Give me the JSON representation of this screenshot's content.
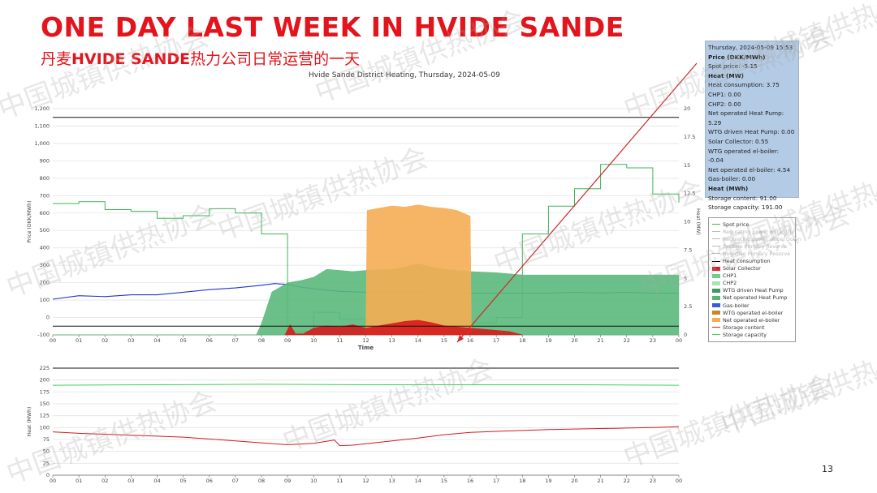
{
  "slide": {
    "title": "ONE DAY LAST WEEK IN HVIDE SANDE",
    "subtitle_prefix": "丹麦",
    "subtitle_bold": "HVIDE SANDE",
    "subtitle_suffix": "热力公司日常运营的一天",
    "page_number": "13",
    "watermark": "中国城镇供热协会"
  },
  "tooltip": {
    "lines": [
      {
        "text": "Thursday, 2024-05-09 15:53",
        "bold": false
      },
      {
        "text": "Price (DKK/MWh)",
        "bold": true
      },
      {
        "text": "Spot price: -5.15",
        "bold": false
      },
      {
        "text": "Heat (MW)",
        "bold": true
      },
      {
        "text": "Heat consumption: 3.75",
        "bold": false
      },
      {
        "text": "CHP1: 0.00",
        "bold": false
      },
      {
        "text": "CHP2: 0.00",
        "bold": false
      },
      {
        "text": "Net operated Heat Pump: 5.29",
        "bold": false
      },
      {
        "text": "WTG driven Heat Pump: 0.00",
        "bold": false
      },
      {
        "text": "Solar Collector: 0.55",
        "bold": false
      },
      {
        "text": "WTG operated el-boiler: -0.04",
        "bold": false
      },
      {
        "text": "Net operated el-boiler: 4.54",
        "bold": false
      },
      {
        "text": "Gas-boiler: 0.00",
        "bold": false
      },
      {
        "text": "Heat (MWh)",
        "bold": true
      },
      {
        "text": "Storage content: 91.00",
        "bold": false
      },
      {
        "text": "Storage capacity: 191.00",
        "bold": false
      }
    ]
  },
  "legend": {
    "items": [
      {
        "label": "Spot price",
        "kind": "line",
        "color": "#3cb65a",
        "hidden": false
      },
      {
        "label": "Regulating power price, Up",
        "kind": "line",
        "color": "#bbbbbb",
        "hidden": true
      },
      {
        "label": "Regulating power price, Down",
        "kind": "line",
        "color": "#bbbbbb",
        "hidden": true
      },
      {
        "label": "Positive Primary Reserve",
        "kind": "line",
        "color": "#bbbbbb",
        "hidden": true
      },
      {
        "label": "Negative Primary Reserve",
        "kind": "line",
        "color": "#bbbbbb",
        "hidden": true
      },
      {
        "label": "Heat consumption",
        "kind": "line",
        "color": "#000000",
        "hidden": false
      },
      {
        "label": "Solar Collector",
        "kind": "box",
        "color": "#d7191c",
        "hidden": false
      },
      {
        "label": "CHP1",
        "kind": "box",
        "color": "#6fcf8a",
        "hidden": false
      },
      {
        "label": "CHP2",
        "kind": "box",
        "color": "#a8e2b5",
        "hidden": false
      },
      {
        "label": "WTG driven Heat Pump",
        "kind": "box",
        "color": "#3c9a5b",
        "hidden": false
      },
      {
        "label": "Net operated Heat Pump",
        "kind": "box",
        "color": "#56b477",
        "hidden": false
      },
      {
        "label": "Gas-boiler",
        "kind": "box",
        "color": "#3b5bd6",
        "hidden": false
      },
      {
        "label": "WTG operated el-boiler",
        "kind": "box",
        "color": "#c8872a",
        "hidden": false
      },
      {
        "label": "Net operated el-boiler",
        "kind": "box",
        "color": "#f5ad53",
        "hidden": false
      },
      {
        "label": "Storage content",
        "kind": "line",
        "color": "#d7191c",
        "hidden": false
      },
      {
        "label": "Storage capacity",
        "kind": "line",
        "color": "#3cd15a",
        "hidden": false
      }
    ]
  },
  "chart_data": [
    {
      "type": "area",
      "title": "Hvide Sande District Heating, Thursday, 2024-05-09",
      "xlabel": "Time",
      "ylabel": "Price (DKK/MWh)",
      "ylabel_right": "Heat (MW)",
      "x_ticks": [
        "00",
        "01",
        "02",
        "03",
        "04",
        "05",
        "06",
        "07",
        "08",
        "09",
        "10",
        "11",
        "12",
        "13",
        "14",
        "15",
        "16",
        "17",
        "18",
        "19",
        "20",
        "21",
        "22",
        "23",
        "00"
      ],
      "ylim": [
        -100,
        1200
      ],
      "y_ticks": [
        "-100",
        "0",
        "100",
        "200",
        "300",
        "400",
        "500",
        "600",
        "700",
        "800",
        "900",
        "1,000",
        "1,100",
        "1,200"
      ],
      "y2lim": [
        0,
        20
      ],
      "y2_ticks": [
        "0",
        "2.5",
        "5",
        "7.5",
        "10",
        "12.5",
        "15",
        "17.5",
        "20"
      ],
      "reference_lines": [
        1150,
        -50
      ],
      "series": [
        {
          "name": "Spot price",
          "color": "#3cb65a",
          "step": true,
          "x": [
            0,
            1,
            2,
            3,
            4,
            5,
            6,
            7,
            8,
            9,
            10,
            11,
            12,
            13,
            14,
            15,
            16,
            17,
            18,
            19,
            20,
            21,
            22,
            23,
            24
          ],
          "values": [
            655,
            665,
            620,
            610,
            570,
            585,
            625,
            600,
            480,
            -80,
            30,
            -10,
            -20,
            -40,
            -60,
            -70,
            -30,
            0,
            480,
            640,
            740,
            880,
            860,
            710,
            660
          ]
        },
        {
          "name": "Gas-boiler",
          "color": "#2233cc",
          "x": [
            0,
            1,
            2,
            3,
            4,
            5,
            6,
            7,
            8,
            8.5,
            9,
            9.5,
            10,
            11,
            12,
            13,
            14,
            15,
            16,
            17,
            18,
            19,
            20,
            21,
            22,
            23,
            24
          ],
          "values": [
            105,
            125,
            120,
            130,
            130,
            145,
            160,
            170,
            185,
            195,
            190,
            175,
            165,
            150,
            145,
            150,
            145,
            135,
            140,
            140,
            140,
            140,
            145,
            140,
            145,
            140,
            140
          ]
        },
        {
          "name": "Net operated Heat Pump",
          "color": "#5ab97b",
          "x": [
            0,
            7.8,
            8,
            8.4,
            9,
            9.5,
            10,
            10.5,
            11,
            11.5,
            12,
            13,
            13.5,
            14,
            14.5,
            15,
            16,
            17,
            17.5,
            18,
            24
          ],
          "values": [
            0,
            0,
            1,
            3.8,
            4.6,
            4.8,
            5.1,
            5.8,
            5.7,
            5.6,
            5.7,
            5.8,
            6.0,
            6.3,
            6.0,
            5.8,
            5.6,
            5.5,
            5.4,
            5.3,
            5.3
          ]
        },
        {
          "name": "Net operated el-boiler",
          "color": "#f5ad53",
          "x": [
            12,
            12.05,
            12.5,
            13,
            13.5,
            14,
            14.5,
            15,
            15.5,
            16,
            16.05
          ],
          "values": [
            0,
            11.0,
            11.2,
            11.4,
            11.3,
            11.5,
            11.3,
            11.2,
            11.0,
            10.5,
            0
          ]
        },
        {
          "name": "Solar Collector",
          "color": "#d7191c",
          "x": [
            8.9,
            9.1,
            9.3,
            9.6,
            10,
            10.5,
            11,
            11.5,
            12,
            12.5,
            13,
            13.5,
            14,
            14.5,
            15,
            15.5,
            16,
            16.5,
            17,
            17.5,
            18
          ],
          "values": [
            0,
            0.9,
            0.1,
            0.1,
            0.6,
            0.8,
            0.7,
            0.9,
            0.6,
            0.8,
            1.0,
            1.2,
            1.3,
            1.1,
            0.8,
            0.7,
            0.6,
            0.5,
            0.4,
            0.3,
            0
          ]
        }
      ]
    },
    {
      "type": "line",
      "ylabel": "Heat (MWh)",
      "x_ticks": [
        "00",
        "01",
        "02",
        "03",
        "04",
        "05",
        "06",
        "07",
        "08",
        "09",
        "10",
        "11",
        "12",
        "13",
        "14",
        "15",
        "16",
        "17",
        "18",
        "19",
        "20",
        "21",
        "22",
        "23",
        "00"
      ],
      "ylim": [
        0,
        225
      ],
      "y_ticks": [
        "0",
        "25",
        "50",
        "75",
        "100",
        "125",
        "150",
        "175",
        "200",
        "225"
      ],
      "reference_lines": [
        225
      ],
      "series": [
        {
          "name": "Storage capacity",
          "color": "#3cd15a",
          "x": [
            0,
            4,
            8,
            12,
            16,
            20,
            24
          ],
          "values": [
            189,
            190,
            191,
            190,
            190,
            190,
            189
          ]
        },
        {
          "name": "Storage content",
          "color": "#d7191c",
          "x": [
            0,
            1,
            2,
            3,
            4,
            5,
            6,
            7,
            8,
            9,
            10,
            10.8,
            11,
            11.5,
            12,
            13,
            14,
            15,
            16,
            17,
            18,
            19,
            20,
            21,
            22,
            23,
            24
          ],
          "values": [
            91,
            88,
            86,
            84,
            82,
            80,
            76,
            72,
            68,
            64,
            67,
            74,
            62,
            63,
            66,
            72,
            78,
            85,
            90,
            92,
            94,
            96,
            97,
            98,
            99,
            100,
            102
          ]
        }
      ]
    }
  ]
}
